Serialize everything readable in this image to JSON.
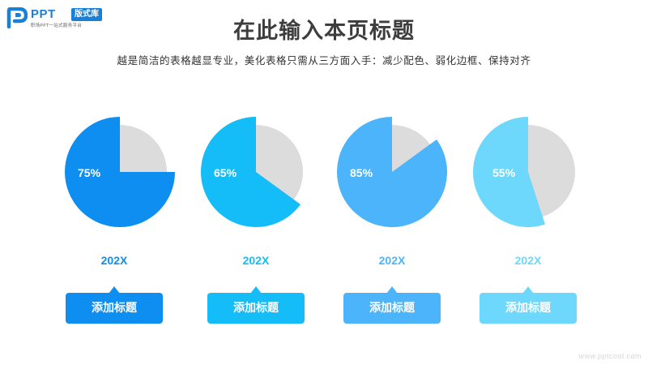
{
  "logo": {
    "brand": "PPT",
    "tag": "版式库",
    "tagline": "职场PPT一站式服务平台"
  },
  "header": {
    "title": "在此输入本页标题",
    "subtitle": "越是简洁的表格越显专业，美化表格只需从三方面入手：减少配色、弱化边框、保持对齐"
  },
  "colors": {
    "remainder": "#dcdcdc",
    "item1": "#0d8ef0",
    "item2": "#14bdf7",
    "item3": "#4cb4fb",
    "item4": "#6dd7fc"
  },
  "chart_data": {
    "type": "pie",
    "items": [
      {
        "label": "75%",
        "value": 0.75,
        "year": "202X",
        "button": "添加标题",
        "color": "#0d8ef0"
      },
      {
        "label": "65%",
        "value": 0.65,
        "year": "202X",
        "button": "添加标题",
        "color": "#14bdf7"
      },
      {
        "label": "85%",
        "value": 0.85,
        "year": "202X",
        "button": "添加标题",
        "color": "#4cb4fb"
      },
      {
        "label": "55%",
        "value": 0.55,
        "year": "202X",
        "button": "添加标题",
        "color": "#6dd7fc"
      }
    ]
  },
  "watermark": "www.pptcool.com"
}
